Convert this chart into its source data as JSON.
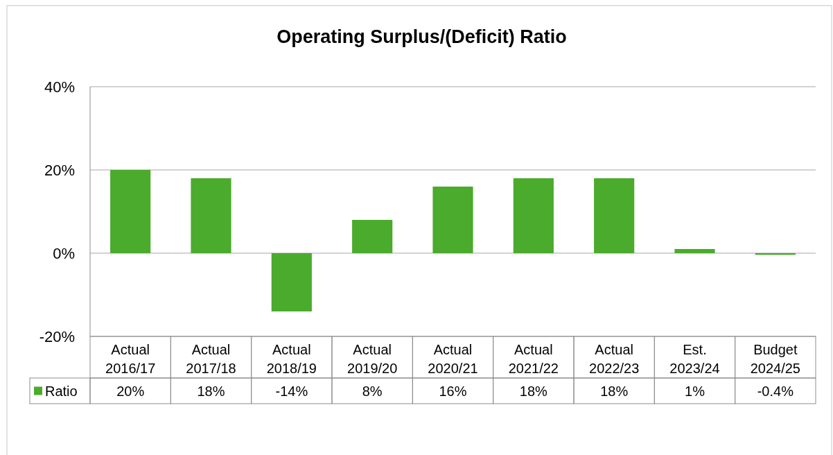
{
  "chart_data": {
    "type": "bar",
    "title": "Operating Surplus/(Deficit) Ratio",
    "categories": [
      "Actual 2016/17",
      "Actual 2017/18",
      "Actual 2018/19",
      "Actual 2019/20",
      "Actual 2020/21",
      "Actual 2021/22",
      "Actual 2022/23",
      "Est. 2023/24",
      "Budget 2024/25"
    ],
    "series": [
      {
        "name": "Ratio",
        "color": "#4aab2c",
        "values": [
          20,
          18,
          -14,
          8,
          16,
          18,
          18,
          1,
          -0.4
        ],
        "value_labels": [
          "20%",
          "18%",
          "-14%",
          "8%",
          "16%",
          "18%",
          "18%",
          "1%",
          "-0.4%"
        ]
      }
    ],
    "ylim": [
      -20,
      40
    ],
    "yticks": [
      {
        "value": -20,
        "label": "-20%"
      },
      {
        "value": 0,
        "label": "0%"
      },
      {
        "value": 20,
        "label": "20%"
      },
      {
        "value": 40,
        "label": "40%"
      }
    ],
    "grid": "y",
    "legend": "bottom left"
  }
}
